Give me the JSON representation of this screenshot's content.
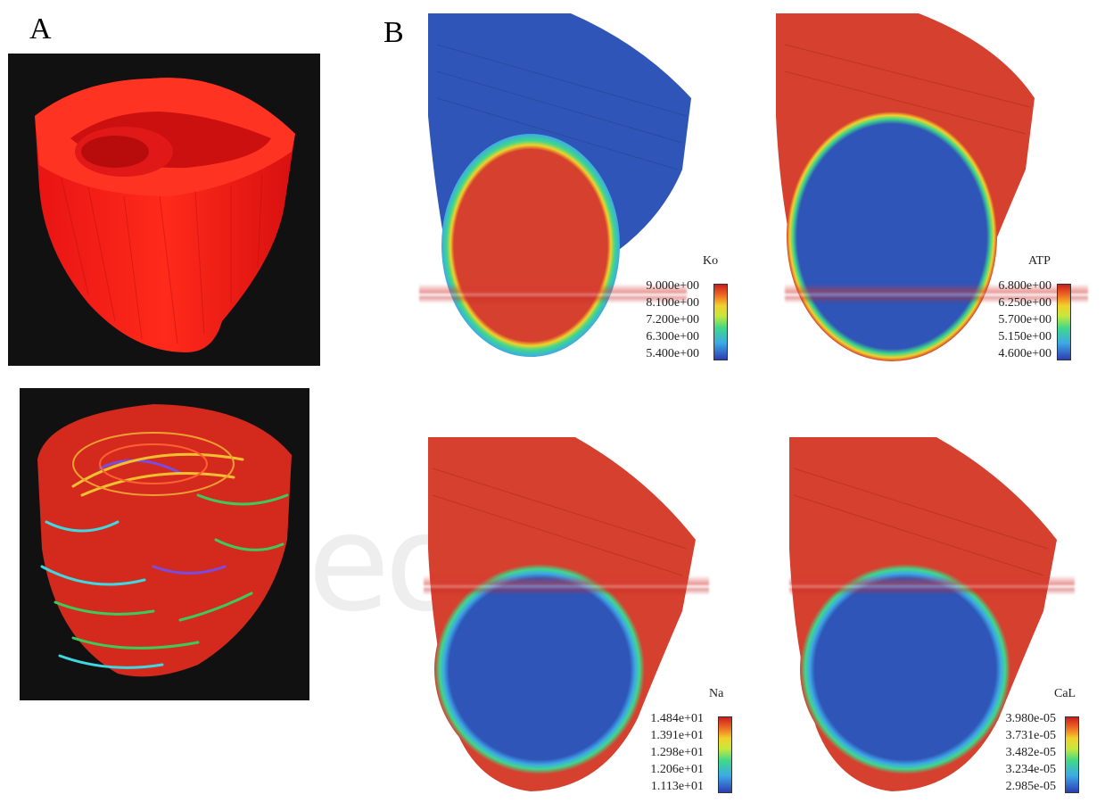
{
  "panels": {
    "a_label": "A",
    "b_label": "B"
  },
  "watermark": "eo",
  "legends": [
    {
      "title": "Ko",
      "ticks": [
        "9.000e+00",
        "8.100e+00",
        "7.200e+00",
        "6.300e+00",
        "5.400e+00"
      ]
    },
    {
      "title": "ATP",
      "ticks": [
        "6.800e+00",
        "6.250e+00",
        "5.700e+00",
        "5.150e+00",
        "4.600e+00"
      ]
    },
    {
      "title": "Na",
      "ticks": [
        "1.484e+01",
        "1.391e+01",
        "1.298e+01",
        "1.206e+01",
        "1.113e+01"
      ]
    },
    {
      "title": "CaL",
      "ticks": [
        "3.980e-05",
        "3.731e-05",
        "3.482e-05",
        "3.234e-05",
        "2.985e-05"
      ]
    }
  ],
  "colors": {
    "tissue_red": "#d63a2a",
    "tissue_blue": "#2f55b8",
    "mesh_red": "#ff1a1a",
    "panel_bg": "#111111"
  }
}
